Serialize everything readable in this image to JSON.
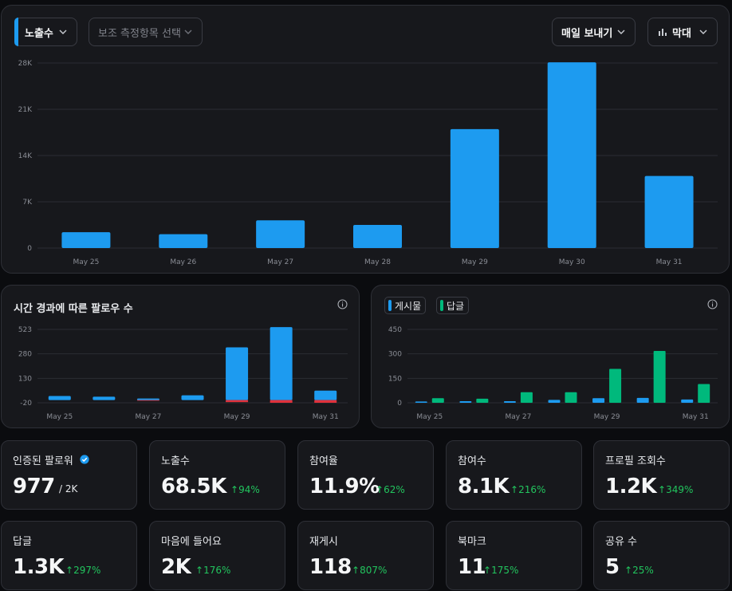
{
  "toolbar": {
    "metric_label": "노출수",
    "secondary_placeholder": "보조 측정항목 선택",
    "export_label": "매일 보내기",
    "chart_type_label": "막대"
  },
  "colors": {
    "accent_blue": "#1d9bf0",
    "green": "#00b97c",
    "red": "#e0323c",
    "positive": "#22c55e"
  },
  "main_chart": {
    "yticks": [
      "28K",
      "21K",
      "14K",
      "7K",
      "0"
    ],
    "chart_data": {
      "type": "bar",
      "categories": [
        "May 25",
        "May 26",
        "May 27",
        "May 28",
        "May 29",
        "May 30",
        "May 31"
      ],
      "series": [
        {
          "name": "노출수",
          "values": [
            2400,
            2100,
            4200,
            3500,
            18000,
            28100,
            10900
          ]
        }
      ],
      "ylim": [
        0,
        28000
      ]
    }
  },
  "followers_panel": {
    "title": "시간 경과에 따른 팔로우 수",
    "yticks": [
      "523",
      "280",
      "130",
      "-20"
    ],
    "chart_data": {
      "type": "bar",
      "categories": [
        "May 25",
        "May 26",
        "May 27",
        "May 28",
        "May 29",
        "May 30",
        "May 31"
      ],
      "xtick_labels": [
        "May 25",
        "May 27",
        "May 29",
        "May 31"
      ],
      "series": [
        {
          "name": "",
          "values": [
            30,
            25,
            12,
            35,
            390,
            540,
            70
          ]
        },
        {
          "name": "",
          "values": [
            0,
            0,
            -5,
            0,
            -15,
            -20,
            -20
          ]
        }
      ],
      "ylim": [
        -20,
        523
      ]
    }
  },
  "posts_panel": {
    "legend": [
      "게시물",
      "답글"
    ],
    "yticks": [
      "450",
      "300",
      "150",
      "0"
    ],
    "chart_data": {
      "type": "bar",
      "categories": [
        "May 25",
        "May 26",
        "May 27",
        "May 28",
        "May 29",
        "May 30",
        "May 31"
      ],
      "xtick_labels": [
        "May 25",
        "May 27",
        "May 29",
        "May 31"
      ],
      "series": [
        {
          "name": "게시물",
          "values": [
            8,
            10,
            10,
            18,
            28,
            30,
            20
          ]
        },
        {
          "name": "답글",
          "values": [
            28,
            25,
            65,
            65,
            208,
            318,
            115
          ]
        }
      ],
      "ylim": [
        0,
        450
      ]
    }
  },
  "stats": [
    {
      "label": "인증된 팔로워",
      "value": "977",
      "sub": "/ 2K",
      "change": "",
      "verified": true
    },
    {
      "label": "노출수",
      "value": "68.5K",
      "sub": "",
      "change": "94%"
    },
    {
      "label": "참여율",
      "value": "11.9%",
      "sub": "",
      "change": "62%"
    },
    {
      "label": "참여수",
      "value": "8.1K",
      "sub": "",
      "change": "216%"
    },
    {
      "label": "프로필 조회수",
      "value": "1.2K",
      "sub": "",
      "change": "349%"
    },
    {
      "label": "답글",
      "value": "1.3K",
      "sub": "",
      "change": "297%"
    },
    {
      "label": "마음에 들어요",
      "value": "2K",
      "sub": "",
      "change": "176%"
    },
    {
      "label": "재게시",
      "value": "118",
      "sub": "",
      "change": "807%"
    },
    {
      "label": "북마크",
      "value": "11",
      "sub": "",
      "change": "175%"
    },
    {
      "label": "공유 수",
      "value": "5",
      "sub": "",
      "change": "25%"
    }
  ]
}
